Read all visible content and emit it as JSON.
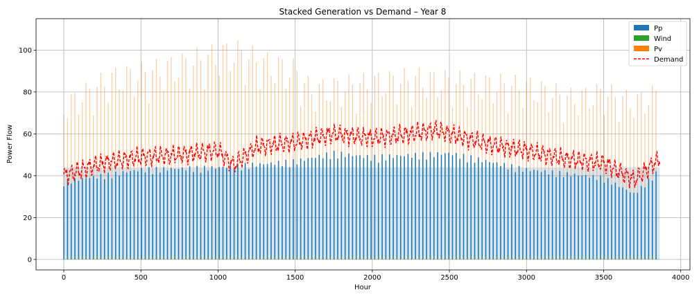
{
  "chart_data": {
    "type": "bar",
    "title": "Stacked Generation vs Demand – Year 8",
    "xlabel": "Hour",
    "ylabel": "Power Flow",
    "xlim": [
      -180,
      4060
    ],
    "ylim": [
      -5,
      115
    ],
    "xticks": [
      0,
      500,
      1000,
      1500,
      2000,
      2500,
      3000,
      3500,
      4000
    ],
    "xtick_labels": [
      "0",
      "500",
      "1000",
      "1500",
      "2000",
      "2500",
      "3000",
      "3500",
      "4000"
    ],
    "yticks": [
      0,
      20,
      40,
      60,
      80,
      100
    ],
    "ytick_labels": [
      "0",
      "20",
      "40",
      "60",
      "80",
      "100"
    ],
    "grid": true,
    "legend_position": "top-right",
    "x_range": [
      0,
      3864
    ],
    "series": [
      {
        "name": "Pp",
        "color": "#1f77b4",
        "kind": "stacked-bar",
        "envelope": {
          "x": [
            0,
            500,
            1000,
            1500,
            1750,
            2000,
            2500,
            3000,
            3500,
            3700,
            3864
          ],
          "y": [
            38,
            44,
            45,
            48,
            52,
            50,
            52,
            44,
            40,
            32,
            44
          ]
        }
      },
      {
        "name": "Wind",
        "color": "#2ca02c",
        "kind": "stacked-bar",
        "envelope": {
          "x": [
            0,
            1000,
            2000,
            3000,
            3864
          ],
          "y": [
            1,
            1,
            1,
            1,
            1
          ]
        }
      },
      {
        "name": "Pv",
        "color": "#ff7f0e",
        "kind": "stacked-bar",
        "envelope": {
          "x": [
            0,
            300,
            600,
            900,
            1100,
            1300,
            1500,
            1600,
            2000,
            2300,
            2600,
            3000,
            3300,
            3500,
            3700,
            3864
          ],
          "y": [
            78,
            92,
            96,
            102,
            106,
            100,
            96,
            86,
            90,
            92,
            90,
            88,
            82,
            85,
            80,
            85
          ]
        }
      },
      {
        "name": "Demand",
        "color": "#ff0000",
        "kind": "dashed-line",
        "envelope": {
          "x": [
            0,
            250,
            500,
            750,
            1000,
            1100,
            1250,
            1500,
            1750,
            2000,
            2250,
            2400,
            2500,
            2750,
            3000,
            3250,
            3500,
            3700,
            3864
          ],
          "y": [
            40,
            46,
            49,
            50,
            52,
            45,
            54,
            56,
            60,
            58,
            60,
            62,
            60,
            55,
            52,
            48,
            46,
            38,
            48
          ]
        }
      }
    ]
  }
}
